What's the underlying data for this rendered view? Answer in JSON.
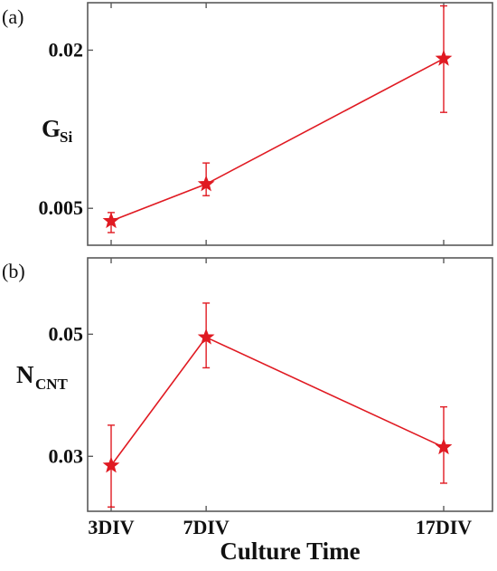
{
  "chart_data": [
    {
      "type": "line",
      "panel_label": "(a)",
      "ylabel": {
        "main": "G",
        "sub": "Si"
      },
      "categories": [
        "3DIV",
        "7DIV",
        "17DIV"
      ],
      "x": [
        3,
        7,
        17
      ],
      "xlim": [
        3,
        17
      ],
      "ylim": [
        0.0015,
        0.0245
      ],
      "yticks": [
        0.005,
        0.02
      ],
      "ytick_labels": [
        "0.005",
        "0.02"
      ],
      "series": [
        {
          "color": "#e01a22",
          "marker": "star",
          "values": [
            0.0038,
            0.0073,
            0.0192
          ],
          "err_low": [
            0.0027,
            0.0062,
            0.0141
          ],
          "err_high": [
            0.0046,
            0.0093,
            0.0242
          ]
        }
      ],
      "grid": false
    },
    {
      "type": "line",
      "panel_label": "(b)",
      "ylabel": {
        "main": "N",
        "sub": "CNT"
      },
      "categories": [
        "3DIV",
        "7DIV",
        "17DIV"
      ],
      "x": [
        3,
        7,
        17
      ],
      "xlim": [
        3,
        17
      ],
      "ylim": [
        0.021,
        0.0625
      ],
      "yticks": [
        0.03,
        0.05
      ],
      "ytick_labels": [
        "0.03",
        "0.05"
      ],
      "series": [
        {
          "color": "#e01a22",
          "marker": "star",
          "values": [
            0.0285,
            0.0495,
            0.0315
          ],
          "err_low": [
            0.0217,
            0.0445,
            0.0256
          ],
          "err_high": [
            0.0351,
            0.0551,
            0.0381
          ]
        }
      ],
      "grid": false
    }
  ],
  "xlabel": "Culture Time",
  "x_tick_labels": [
    "3DIV",
    "7DIV",
    "17DIV"
  ]
}
